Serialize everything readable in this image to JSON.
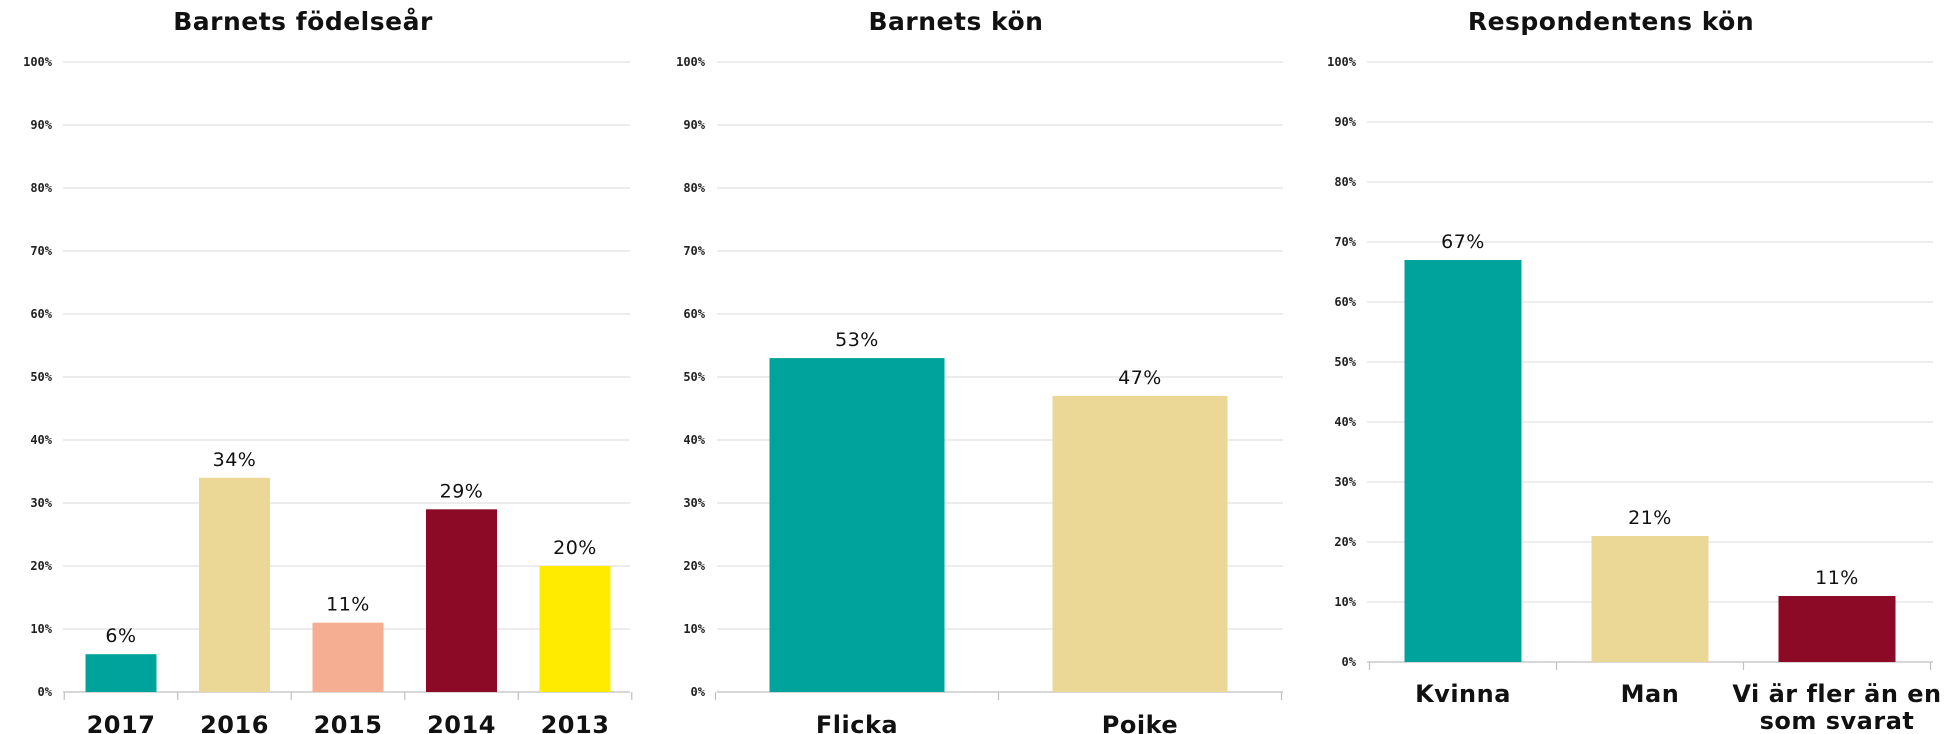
{
  "chart_data": [
    {
      "type": "bar",
      "title": "Barnets födelseår",
      "categories": [
        "2017",
        "2016",
        "2015",
        "2014",
        "2013"
      ],
      "values": [
        6,
        34,
        11,
        29,
        20
      ],
      "value_labels": [
        "6%",
        "34%",
        "11%",
        "29%",
        "20%"
      ],
      "colors": [
        "#00A39B",
        "#EBD796",
        "#F5AE91",
        "#8C0A26",
        "#FFEB00"
      ],
      "ylim": [
        0,
        100
      ],
      "yticks": [
        0,
        10,
        20,
        30,
        40,
        50,
        60,
        70,
        80,
        90,
        100
      ],
      "ytick_labels": [
        "0%",
        "10%",
        "20%",
        "30%",
        "40%",
        "50%",
        "60%",
        "70%",
        "80%",
        "90%",
        "100%"
      ],
      "grid": true,
      "legend": "none"
    },
    {
      "type": "bar",
      "title": "Barnets kön",
      "categories": [
        "Flicka",
        "Pojke"
      ],
      "values": [
        53,
        47
      ],
      "value_labels": [
        "53%",
        "47%"
      ],
      "colors": [
        "#00A39B",
        "#EBD796"
      ],
      "ylim": [
        0,
        100
      ],
      "yticks": [
        0,
        10,
        20,
        30,
        40,
        50,
        60,
        70,
        80,
        90,
        100
      ],
      "ytick_labels": [
        "0%",
        "10%",
        "20%",
        "30%",
        "40%",
        "50%",
        "60%",
        "70%",
        "80%",
        "90%",
        "100%"
      ],
      "grid": true,
      "legend": "none"
    },
    {
      "type": "bar",
      "title": "Respondentens kön",
      "categories": [
        "Kvinna",
        "Man",
        "Vi är fler än en som svarat"
      ],
      "category_lines": [
        [
          "Kvinna"
        ],
        [
          "Man"
        ],
        [
          "Vi är fler än en",
          "som svarat"
        ]
      ],
      "values": [
        67,
        21,
        11
      ],
      "value_labels": [
        "67%",
        "21%",
        "11%"
      ],
      "colors": [
        "#00A39B",
        "#EBD796",
        "#8C0A26"
      ],
      "ylim": [
        0,
        100
      ],
      "yticks": [
        0,
        10,
        20,
        30,
        40,
        50,
        60,
        70,
        80,
        90,
        100
      ],
      "ytick_labels": [
        "0%",
        "10%",
        "20%",
        "30%",
        "40%",
        "50%",
        "60%",
        "70%",
        "80%",
        "90%",
        "100%"
      ],
      "grid": true,
      "legend": "none"
    }
  ]
}
